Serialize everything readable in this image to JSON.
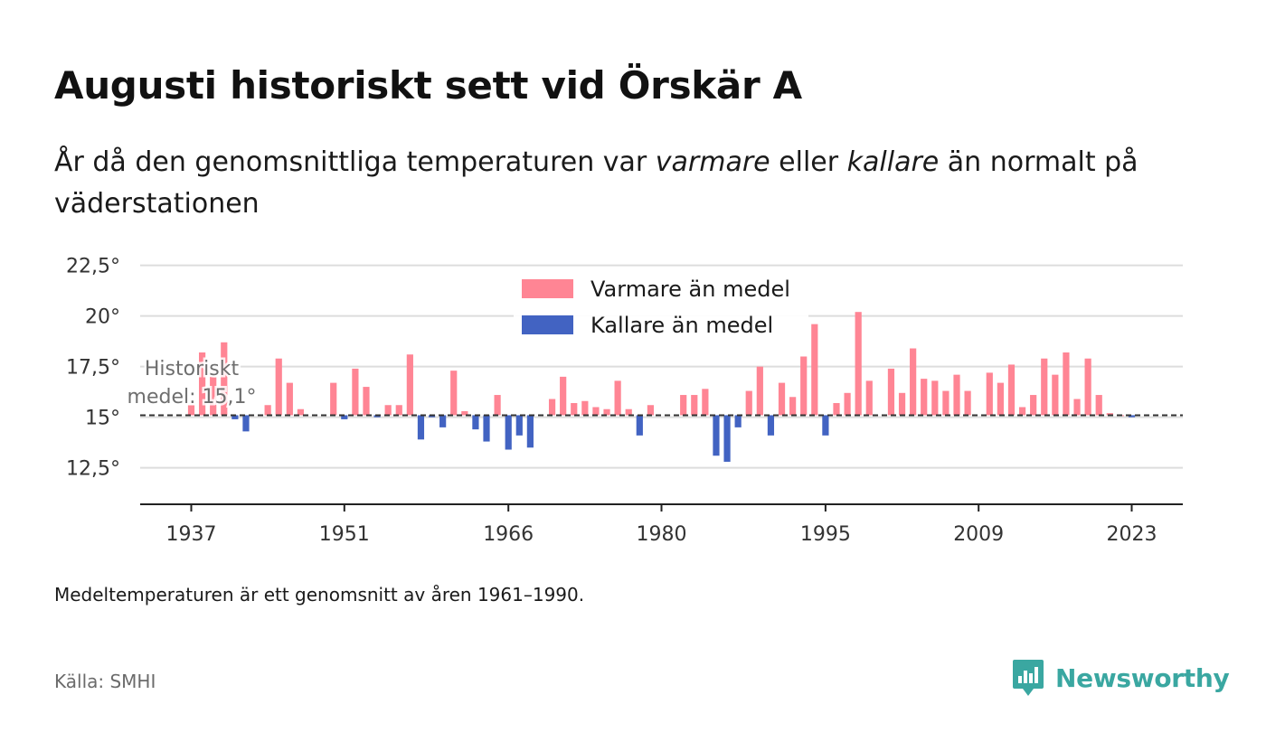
{
  "title": "Augusti historiskt sett vid Örskär A",
  "subtitle": {
    "part1": "År då den genomsnittliga temperaturen var ",
    "warm_word": "varmare",
    "part2": " eller ",
    "cold_word": "kallare",
    "part3": " än normalt på väderstationen"
  },
  "note": "Medeltemperaturen är ett genomsnitt av åren 1961–1990.",
  "source": "Källa: SMHI",
  "brand": {
    "name": "Newsworthy",
    "icon": "newsworthy-logo-icon"
  },
  "colors": {
    "warm": "#ff8594",
    "cold": "#4263c2",
    "grid": "#dddddd",
    "axis": "#222222",
    "teal": "#3aa7a1"
  },
  "chart_data": {
    "type": "bar",
    "baseline": 15.1,
    "baseline_label_line1": "Historiskt",
    "baseline_label_line2": "medel: 15,1°",
    "ylim": [
      10.7,
      23.2
    ],
    "yticks": [
      12.5,
      15,
      17.5,
      20,
      22.5
    ],
    "ytick_labels": [
      "12,5°",
      "15°",
      "17,5°",
      "20°",
      "22,5°"
    ],
    "xticks": [
      1937,
      1951,
      1966,
      1980,
      1995,
      2009,
      2023
    ],
    "xtick_labels": [
      "1937",
      "1951",
      "1966",
      "1980",
      "1995",
      "2009",
      "2023"
    ],
    "legend": {
      "placement": "top-center",
      "warm_label": "Varmare än medel",
      "cold_label": "Kallare än medel"
    },
    "years": [
      1937,
      1938,
      1939,
      1940,
      1941,
      1942,
      1944,
      1945,
      1946,
      1947,
      1950,
      1951,
      1952,
      1953,
      1954,
      1955,
      1956,
      1957,
      1958,
      1959,
      1960,
      1961,
      1962,
      1963,
      1964,
      1965,
      1966,
      1967,
      1968,
      1970,
      1971,
      1972,
      1973,
      1974,
      1975,
      1976,
      1977,
      1978,
      1979,
      1982,
      1983,
      1984,
      1985,
      1986,
      1987,
      1988,
      1989,
      1990,
      1991,
      1992,
      1993,
      1994,
      1995,
      1996,
      1997,
      1998,
      1999,
      2001,
      2002,
      2003,
      2004,
      2005,
      2006,
      2007,
      2008,
      2010,
      2011,
      2012,
      2013,
      2014,
      2015,
      2016,
      2017,
      2018,
      2019,
      2020,
      2021,
      2022,
      2023
    ],
    "values": [
      15.6,
      18.2,
      17.0,
      18.7,
      14.9,
      14.3,
      15.6,
      17.9,
      16.7,
      15.4,
      16.7,
      14.9,
      17.4,
      16.5,
      15.0,
      15.6,
      15.6,
      18.1,
      13.9,
      15.0,
      14.5,
      17.3,
      15.3,
      14.4,
      13.8,
      16.1,
      13.4,
      14.1,
      13.5,
      15.9,
      17.0,
      15.7,
      15.8,
      15.5,
      15.4,
      16.8,
      15.4,
      14.1,
      15.6,
      16.1,
      16.1,
      16.4,
      13.1,
      12.8,
      14.5,
      16.3,
      17.5,
      14.1,
      16.7,
      16.0,
      18.0,
      19.6,
      14.1,
      15.7,
      16.2,
      20.2,
      16.8,
      17.4,
      16.2,
      18.4,
      16.9,
      16.8,
      16.3,
      17.1,
      16.3,
      17.2,
      16.7,
      17.6,
      15.5,
      16.1,
      17.9,
      17.1,
      18.2,
      15.9,
      17.9,
      16.1,
      15.2,
      15.1,
      15.0
    ]
  }
}
